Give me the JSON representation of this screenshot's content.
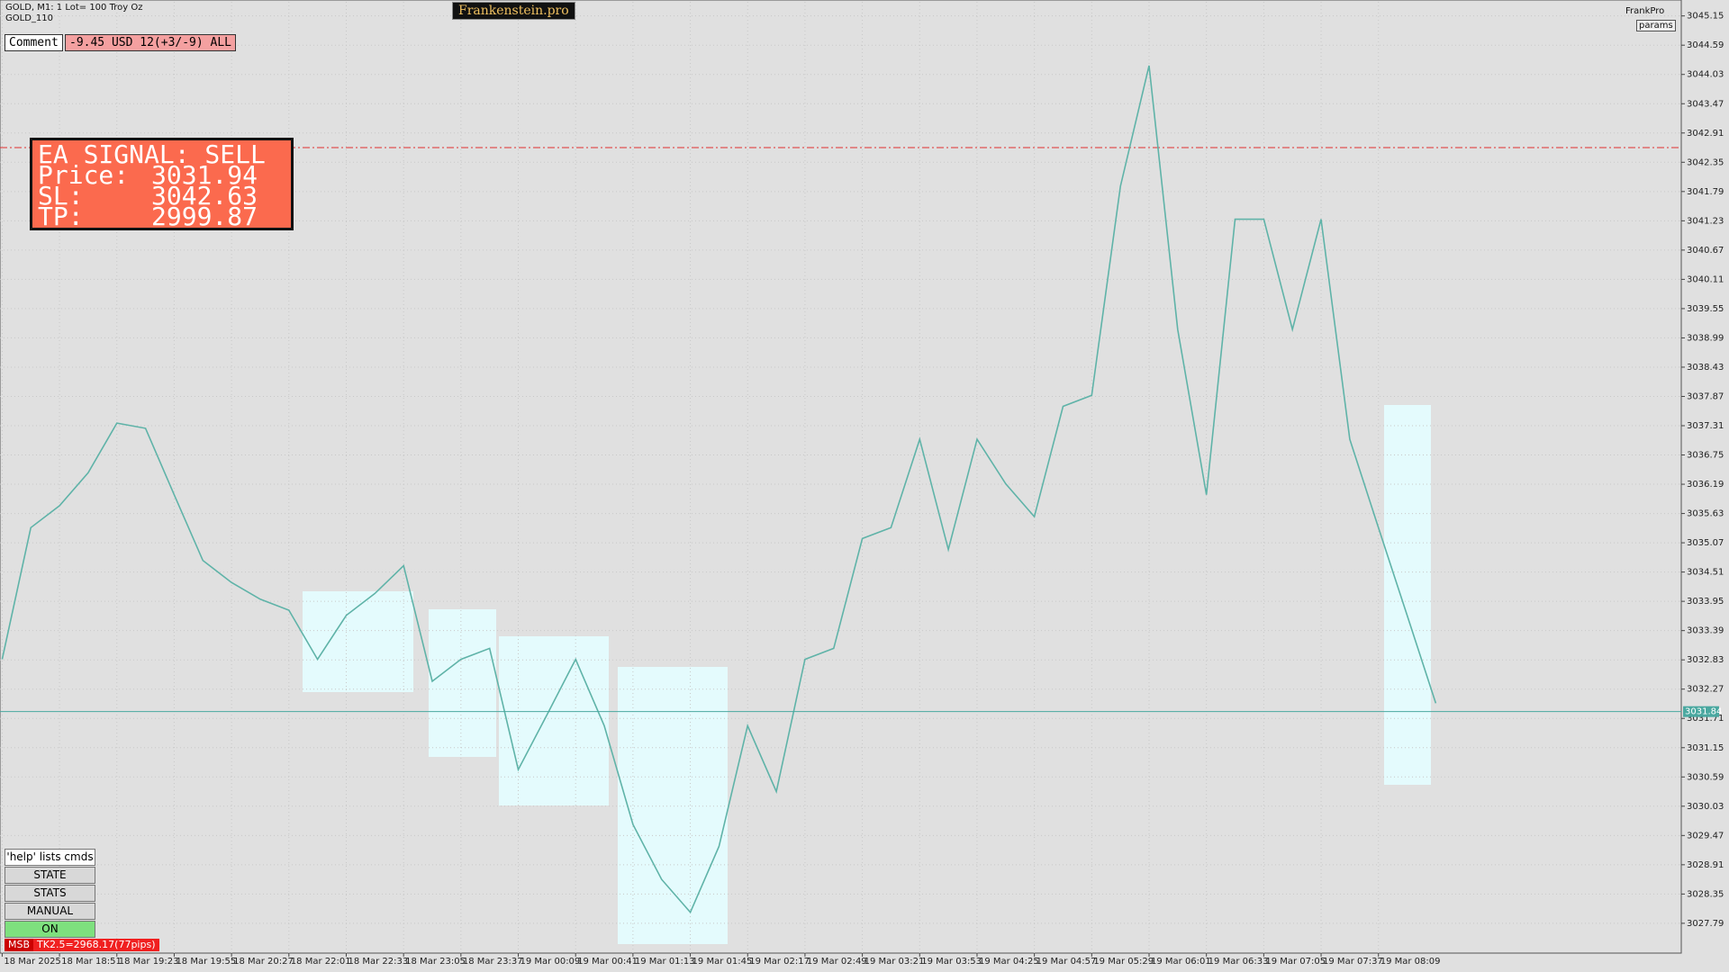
{
  "ui": {
    "symbol_info": "GOLD, M1:  1 Lot= 100 Troy Oz",
    "symbol_name": "GOLD_110",
    "brand": "Frankenstein.pro",
    "comment_label": "Comment",
    "comment_value": "-9.45 USD 12(+3/-9) ALL",
    "top_right_name": "FrankPro",
    "params_button": "params",
    "signal": {
      "title": "EA SIGNAL: SELL",
      "rows": [
        {
          "label": "Price:",
          "value": 3031.94
        },
        {
          "label": "SL:",
          "value": 3042.63
        },
        {
          "label": "TP:",
          "value": 2999.87
        }
      ]
    },
    "buttons": [
      "'help' lists cmds",
      "STATE",
      "STATS",
      "MANUAL",
      "ON"
    ],
    "status_tag": "MSB",
    "status_text": "TK2.5=2968.17(77pips)"
  },
  "chart_data": {
    "type": "line",
    "categories": [
      "18 Mar 2025",
      null,
      "18 Mar 18:51",
      null,
      "18 Mar 19:23",
      null,
      "18 Mar 19:55",
      null,
      "18 Mar 20:27",
      null,
      "18 Mar 22:01",
      null,
      "18 Mar 22:33",
      null,
      "18 Mar 23:05",
      null,
      "18 Mar 23:37",
      null,
      "19 Mar 00:09",
      null,
      "19 Mar 00:41",
      null,
      "19 Mar 01:13",
      null,
      "19 Mar 01:45",
      null,
      "19 Mar 02:17",
      null,
      "19 Mar 02:49",
      null,
      "19 Mar 03:21",
      null,
      "19 Mar 03:53",
      null,
      "19 Mar 04:25",
      null,
      "19 Mar 04:57",
      null,
      "19 Mar 05:29",
      null,
      "19 Mar 06:01",
      null,
      "19 Mar 06:33",
      null,
      "19 Mar 07:05",
      null,
      "19 Mar 07:37",
      null,
      "19 Mar 08:09",
      null,
      null
    ],
    "series": [
      {
        "color": "#5fb3a8",
        "values": [
          3032.84,
          3035.36,
          3035.78,
          3036.41,
          3037.36,
          3037.26,
          3035.99,
          3034.73,
          3034.31,
          3033.99,
          3033.78,
          3032.84,
          3033.68,
          3034.1,
          3034.63,
          3032.42,
          3032.84,
          3033.05,
          3030.73,
          3031.78,
          3032.84,
          3031.57,
          3029.68,
          3028.63,
          3028.0,
          3029.26,
          3031.57,
          3030.31,
          3032.84,
          3033.05,
          3035.15,
          3035.36,
          3037.05,
          3034.94,
          3037.05,
          3036.2,
          3035.57,
          3037.68,
          3037.89,
          3041.89,
          3044.2,
          3039.15,
          3035.99,
          3041.26,
          3041.26,
          3039.15,
          3041.26,
          3037.05,
          3035.36,
          3033.68,
          3032.0
        ]
      }
    ],
    "ylim": [
      3027.22,
      3045.42
    ],
    "yticks": [
      3045.15,
      3044.59,
      3044.03,
      3043.47,
      3042.91,
      3042.35,
      3041.79,
      3041.23,
      3040.67,
      3040.11,
      3039.55,
      3038.99,
      3038.43,
      3037.87,
      3037.31,
      3036.75,
      3036.19,
      3035.63,
      3035.07,
      3034.51,
      3033.95,
      3033.39,
      3032.83,
      3032.27,
      3031.71,
      3031.15,
      3030.59,
      3030.03,
      3029.47,
      3028.91,
      3028.35,
      3027.79
    ],
    "grid": true,
    "current_price": 3031.84
  }
}
